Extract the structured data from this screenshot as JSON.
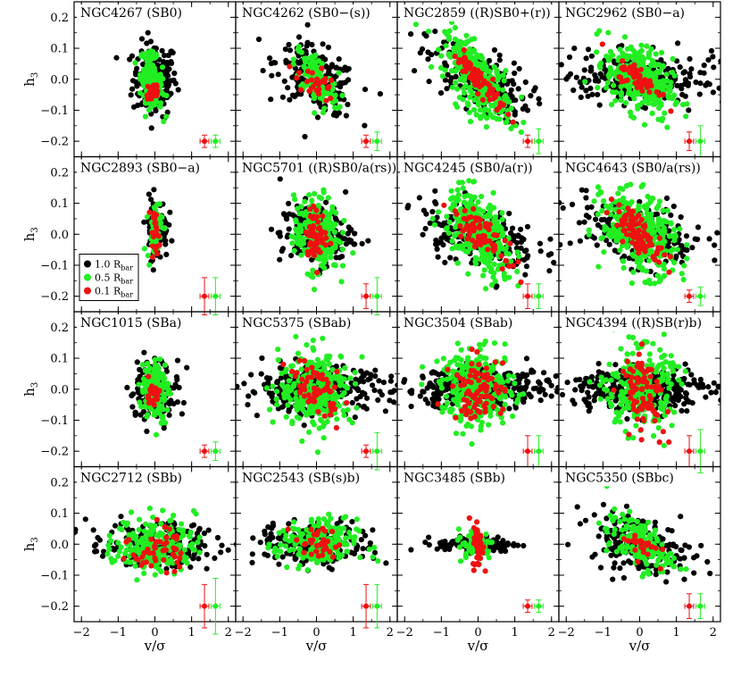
{
  "chart_data": {
    "type": "scatter",
    "layout": {
      "rows": 4,
      "cols": 4
    },
    "xlabel": "v/σ",
    "ylabel_main": "h",
    "ylabel_sub": "3",
    "xlim": [
      -2.2,
      2.2
    ],
    "ylim": [
      -0.25,
      0.25
    ],
    "xticks": [
      -2,
      -1,
      0,
      1,
      2
    ],
    "yticks": [
      -0.2,
      -0.1,
      0.0,
      0.1,
      0.2
    ],
    "ytick_labels": [
      "−0.2",
      "−0.1",
      "0.0",
      "0.1",
      "0.2"
    ],
    "xtick_labels": [
      "−2",
      "−1",
      "0",
      "1",
      "2"
    ],
    "series": [
      {
        "name": "1.0 R",
        "sub": "bar",
        "color": "#000000"
      },
      {
        "name": "0.5 R",
        "sub": "bar",
        "color": "#22ee22"
      },
      {
        "name": "0.1 R",
        "sub": "bar",
        "color": "#ee1111"
      }
    ],
    "legend_location": "panel-5-left",
    "panels": [
      {
        "title": "NGC4267 (SB0)",
        "black": {
          "cx": 0.0,
          "sx": 0.3,
          "cy": 0.0,
          "sy": 0.06,
          "n": 180,
          "slope": 0
        },
        "green": {
          "cx": -0.1,
          "sx": 0.15,
          "cy": 0.0,
          "sy": 0.04,
          "n": 150,
          "slope": -0.1
        },
        "red": {
          "cx": -0.05,
          "sx": 0.1,
          "cy": -0.04,
          "sy": 0.02,
          "n": 25,
          "slope": 0
        },
        "err_red": [
          0.02,
          0.01
        ],
        "err_green": [
          0.02,
          0.01
        ]
      },
      {
        "title": "NGC4262 (SB0−(s))",
        "black": {
          "cx": 0.0,
          "sx": 0.55,
          "cy": 0.0,
          "sy": 0.05,
          "n": 200,
          "slope": -0.05
        },
        "green": {
          "cx": 0.0,
          "sx": 0.3,
          "cy": 0.0,
          "sy": 0.04,
          "n": 120,
          "slope": -0.1
        },
        "red": {
          "cx": 0.0,
          "sx": 0.25,
          "cy": -0.01,
          "sy": 0.03,
          "n": 30,
          "slope": -0.06
        },
        "err_red": [
          0.02,
          0.01
        ],
        "err_green": [
          0.02,
          0.02
        ]
      },
      {
        "title": "NGC2859 ((R)SB0+(r))",
        "black": {
          "cx": 0.0,
          "sx": 0.7,
          "cy": 0.0,
          "sy": 0.05,
          "n": 180,
          "slope": -0.05
        },
        "green": {
          "cx": 0.0,
          "sx": 0.45,
          "cy": 0.0,
          "sy": 0.05,
          "n": 300,
          "slope": -0.1
        },
        "red": {
          "cx": 0.0,
          "sx": 0.35,
          "cy": 0.0,
          "sy": 0.02,
          "n": 70,
          "slope": -0.13
        },
        "err_red": [
          0.02,
          0.01
        ],
        "err_green": [
          0.02,
          0.03
        ]
      },
      {
        "title": "NGC2962 (SB0−a)",
        "black": {
          "cx": 0.0,
          "sx": 1.2,
          "cy": 0.0,
          "sy": 0.04,
          "n": 220,
          "slope": 0
        },
        "green": {
          "cx": 0.0,
          "sx": 0.45,
          "cy": 0.0,
          "sy": 0.055,
          "n": 300,
          "slope": -0.05
        },
        "red": {
          "cx": 0.0,
          "sx": 0.3,
          "cy": 0.0,
          "sy": 0.02,
          "n": 50,
          "slope": -0.07
        },
        "err_red": [
          0.03,
          0.02
        ],
        "err_green": [
          0.03,
          0.04
        ]
      },
      {
        "title": "NGC2893 (SB0−a)",
        "black": {
          "cx": 0.05,
          "sx": 0.15,
          "cy": 0.02,
          "sy": 0.05,
          "n": 90,
          "slope": 0
        },
        "green": {
          "cx": 0.0,
          "sx": 0.1,
          "cy": 0.02,
          "sy": 0.05,
          "n": 60,
          "slope": 0
        },
        "red": {
          "cx": 0.0,
          "sx": 0.06,
          "cy": 0.01,
          "sy": 0.03,
          "n": 20,
          "slope": -0.1
        },
        "err_red": [
          0.03,
          0.05
        ],
        "err_green": [
          0.03,
          0.05
        ]
      },
      {
        "title": "NGC5701 ((R)SB0/a(rs))",
        "black": {
          "cx": 0.0,
          "sx": 0.5,
          "cy": 0.0,
          "sy": 0.05,
          "n": 180,
          "slope": 0
        },
        "green": {
          "cx": 0.0,
          "sx": 0.3,
          "cy": 0.0,
          "sy": 0.06,
          "n": 260,
          "slope": 0
        },
        "red": {
          "cx": 0.0,
          "sx": 0.15,
          "cy": 0.0,
          "sy": 0.04,
          "n": 60,
          "slope": -0.05
        },
        "err_red": [
          0.03,
          0.03
        ],
        "err_green": [
          0.03,
          0.05
        ]
      },
      {
        "title": "NGC4245 (SB0/a(r))",
        "black": {
          "cx": 0.0,
          "sx": 0.8,
          "cy": 0.0,
          "sy": 0.05,
          "n": 200,
          "slope": -0.03
        },
        "green": {
          "cx": 0.05,
          "sx": 0.45,
          "cy": 0.0,
          "sy": 0.06,
          "n": 320,
          "slope": -0.08
        },
        "red": {
          "cx": 0.05,
          "sx": 0.35,
          "cy": 0.0,
          "sy": 0.025,
          "n": 70,
          "slope": -0.1
        },
        "err_red": [
          0.03,
          0.03
        ],
        "err_green": [
          0.03,
          0.03
        ]
      },
      {
        "title": "NGC4643 (SB0/a(rs))",
        "black": {
          "cx": 0.0,
          "sx": 0.9,
          "cy": 0.0,
          "sy": 0.05,
          "n": 220,
          "slope": -0.03
        },
        "green": {
          "cx": 0.0,
          "sx": 0.5,
          "cy": 0.0,
          "sy": 0.06,
          "n": 340,
          "slope": -0.05
        },
        "red": {
          "cx": 0.0,
          "sx": 0.35,
          "cy": 0.0,
          "sy": 0.03,
          "n": 90,
          "slope": -0.1
        },
        "err_red": [
          0.02,
          0.01
        ],
        "err_green": [
          0.03,
          0.02
        ]
      },
      {
        "title": "NGC1015 (SBa)",
        "black": {
          "cx": 0.0,
          "sx": 0.35,
          "cy": 0.0,
          "sy": 0.05,
          "n": 120,
          "slope": 0
        },
        "green": {
          "cx": 0.0,
          "sx": 0.18,
          "cy": 0.0,
          "sy": 0.05,
          "n": 150,
          "slope": 0
        },
        "red": {
          "cx": -0.05,
          "sx": 0.1,
          "cy": -0.02,
          "sy": 0.02,
          "n": 25,
          "slope": 0
        },
        "err_red": [
          0.02,
          0.01
        ],
        "err_green": [
          0.03,
          0.02
        ]
      },
      {
        "title": "NGC5375 (SBab)",
        "black": {
          "cx": 0.0,
          "sx": 1.0,
          "cy": 0.0,
          "sy": 0.035,
          "n": 260,
          "slope": 0
        },
        "green": {
          "cx": 0.0,
          "sx": 0.5,
          "cy": 0.0,
          "sy": 0.06,
          "n": 300,
          "slope": 0
        },
        "red": {
          "cx": 0.0,
          "sx": 0.3,
          "cy": 0.0,
          "sy": 0.04,
          "n": 60,
          "slope": -0.05
        },
        "err_red": [
          0.02,
          0.01
        ],
        "err_green": [
          0.03,
          0.05
        ]
      },
      {
        "title": "NGC3504 (SBab)",
        "black": {
          "cx": 0.0,
          "sx": 1.1,
          "cy": 0.0,
          "sy": 0.03,
          "n": 300,
          "slope": 0
        },
        "green": {
          "cx": 0.0,
          "sx": 0.5,
          "cy": 0.0,
          "sy": 0.06,
          "n": 300,
          "slope": 0
        },
        "red": {
          "cx": 0.0,
          "sx": 0.35,
          "cy": 0.0,
          "sy": 0.05,
          "n": 80,
          "slope": 0
        },
        "err_red": [
          0.04,
          0.04
        ],
        "err_green": [
          0.04,
          0.04
        ]
      },
      {
        "title": "NGC4394 ((R)SB(r)b)",
        "black": {
          "cx": 0.0,
          "sx": 1.0,
          "cy": 0.0,
          "sy": 0.035,
          "n": 300,
          "slope": 0
        },
        "green": {
          "cx": 0.0,
          "sx": 0.45,
          "cy": 0.0,
          "sy": 0.065,
          "n": 260,
          "slope": 0
        },
        "red": {
          "cx": 0.1,
          "sx": 0.3,
          "cy": 0.0,
          "sy": 0.06,
          "n": 80,
          "slope": -0.05
        },
        "err_red": [
          0.03,
          0.04
        ],
        "err_green": [
          0.04,
          0.06
        ]
      },
      {
        "title": "NGC2712 (SBb)",
        "black": {
          "cx": 0.0,
          "sx": 0.9,
          "cy": 0.0,
          "sy": 0.035,
          "n": 200,
          "slope": 0
        },
        "green": {
          "cx": 0.0,
          "sx": 0.55,
          "cy": 0.0,
          "sy": 0.045,
          "n": 200,
          "slope": 0
        },
        "red": {
          "cx": 0.1,
          "sx": 0.35,
          "cy": -0.02,
          "sy": 0.04,
          "n": 45,
          "slope": 0
        },
        "err_red": [
          0.05,
          0.06
        ],
        "err_green": [
          0.05,
          0.08
        ]
      },
      {
        "title": "NGC2543 (SB(s)b)",
        "black": {
          "cx": 0.0,
          "sx": 0.8,
          "cy": 0.0,
          "sy": 0.035,
          "n": 200,
          "slope": 0
        },
        "green": {
          "cx": 0.0,
          "sx": 0.55,
          "cy": 0.0,
          "sy": 0.04,
          "n": 180,
          "slope": 0
        },
        "red": {
          "cx": 0.0,
          "sx": 0.3,
          "cy": 0.0,
          "sy": 0.03,
          "n": 35,
          "slope": 0
        },
        "err_red": [
          0.03,
          0.06
        ],
        "err_green": [
          0.04,
          0.06
        ]
      },
      {
        "title": "NGC3485 (SBb)",
        "black": {
          "cx": 0.0,
          "sx": 0.55,
          "cy": 0.0,
          "sy": 0.012,
          "n": 120,
          "slope": 0
        },
        "green": {
          "cx": -0.05,
          "sx": 0.25,
          "cy": 0.0,
          "sy": 0.025,
          "n": 60,
          "slope": 0
        },
        "red": {
          "cx": 0.0,
          "sx": 0.07,
          "cy": 0.0,
          "sy": 0.04,
          "n": 40,
          "slope": 0
        },
        "err_red": [
          0.02,
          0.01
        ],
        "err_green": [
          0.02,
          0.01
        ]
      },
      {
        "title": "NGC5350 (SBbc)",
        "black": {
          "cx": 0.0,
          "sx": 0.7,
          "cy": 0.0,
          "sy": 0.045,
          "n": 200,
          "slope": -0.03
        },
        "green": {
          "cx": 0.0,
          "sx": 0.45,
          "cy": 0.0,
          "sy": 0.04,
          "n": 150,
          "slope": -0.05
        },
        "red": {
          "cx": 0.0,
          "sx": 0.25,
          "cy": 0.0,
          "sy": 0.02,
          "n": 25,
          "slope": -0.05
        },
        "err_red": [
          0.03,
          0.03
        ],
        "err_green": [
          0.03,
          0.03
        ]
      }
    ]
  }
}
